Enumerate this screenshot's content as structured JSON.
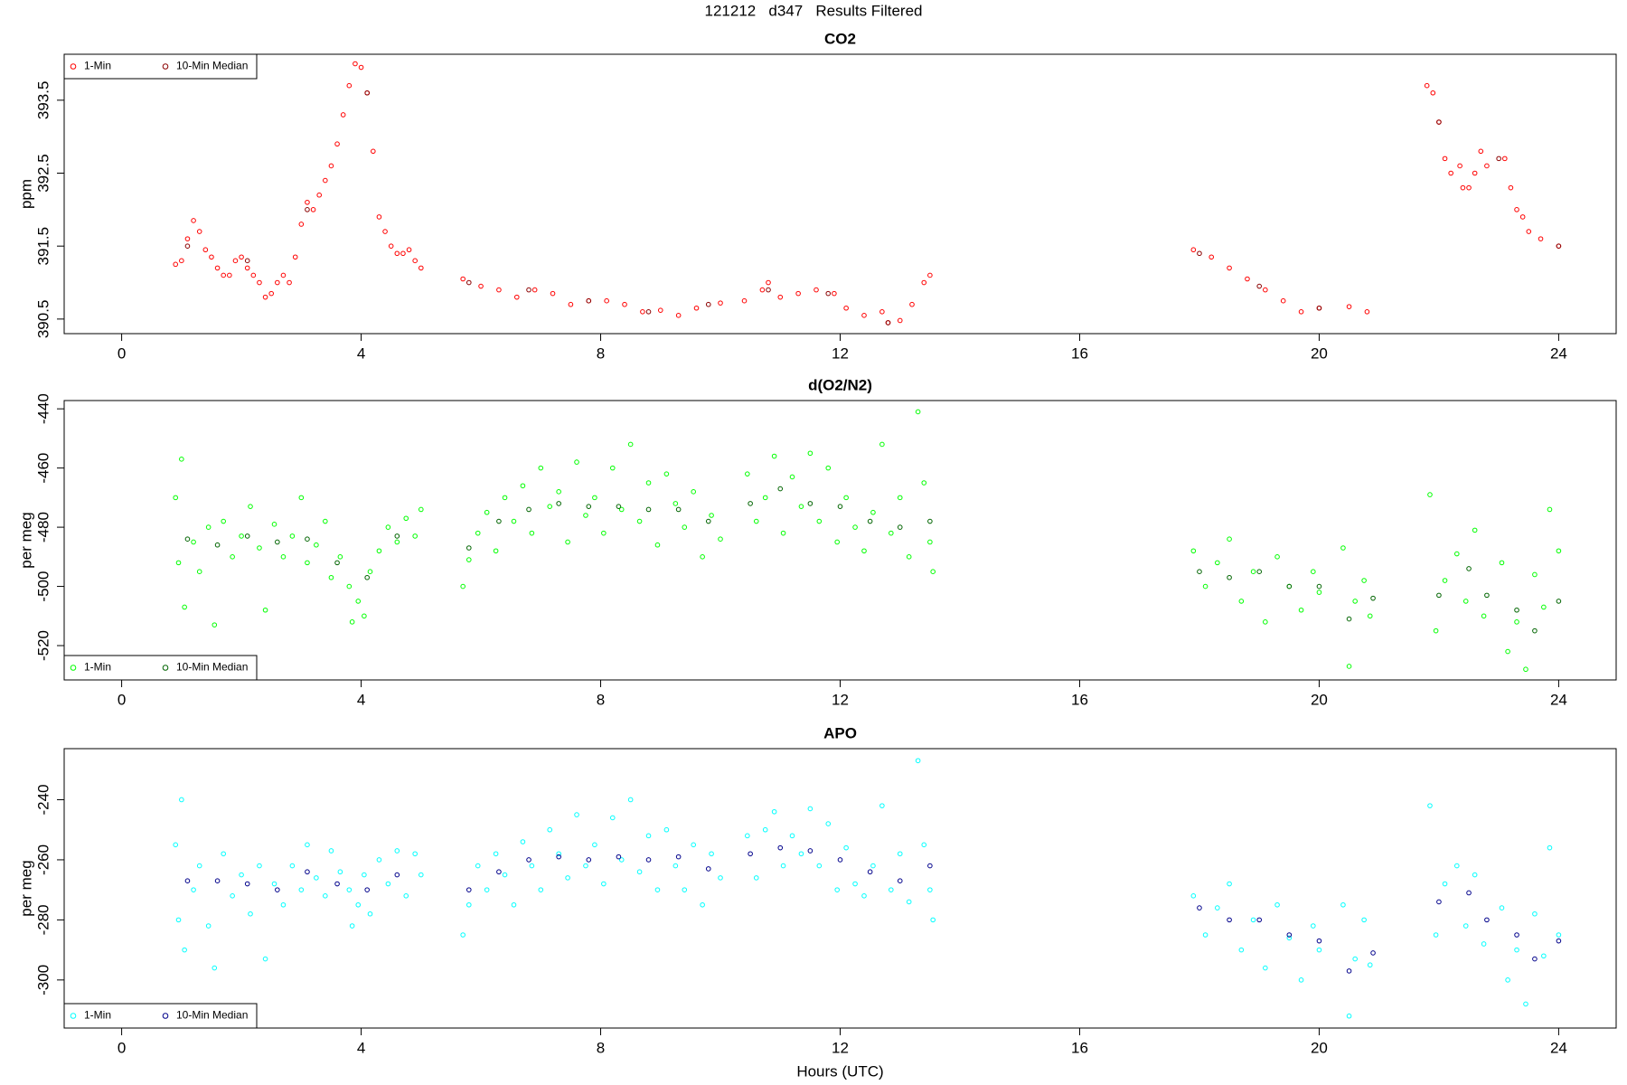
{
  "title": "121212   d347   Results Filtered",
  "chart_data": [
    {
      "type": "scatter",
      "title": "CO2",
      "y_label": "ppm",
      "legend": "top-left",
      "xlim": [
        -0.96,
        24.96
      ],
      "xticks": [
        0,
        4,
        8,
        12,
        16,
        20,
        24
      ],
      "ylim": [
        390.3,
        394.13
      ],
      "yticks": [
        390.5,
        391.5,
        392.5,
        393.5
      ],
      "series": [
        {
          "name": "1-Min",
          "color": "#ff0000",
          "x": [
            0.9,
            1.0,
            1.1,
            1.2,
            1.3,
            1.4,
            1.5,
            1.6,
            1.7,
            1.8,
            1.9,
            2.0,
            2.1,
            2.2,
            2.3,
            2.4,
            2.5,
            2.6,
            2.7,
            2.8,
            2.9,
            3.0,
            3.1,
            3.2,
            3.3,
            3.4,
            3.5,
            3.6,
            3.7,
            3.8,
            3.9,
            4.0,
            4.1,
            4.2,
            4.3,
            4.4,
            4.5,
            4.6,
            4.7,
            4.8,
            4.9,
            5.0,
            5.7,
            6.0,
            6.3,
            6.6,
            6.9,
            7.2,
            7.5,
            7.8,
            8.1,
            8.4,
            8.7,
            9.0,
            9.3,
            9.6,
            10.0,
            10.4,
            10.7,
            10.8,
            11.0,
            11.3,
            11.6,
            11.9,
            12.1,
            12.4,
            12.7,
            12.8,
            13.0,
            13.2,
            13.4,
            13.5,
            17.9,
            18.2,
            18.5,
            18.8,
            19.1,
            19.4,
            19.7,
            20.0,
            20.5,
            20.8,
            21.8,
            21.9,
            22.0,
            22.1,
            22.2,
            22.35,
            22.4,
            22.5,
            22.6,
            22.7,
            22.8,
            23.1,
            23.2,
            23.3,
            23.4,
            23.5,
            23.7,
            24.0
          ],
          "values": [
            391.25,
            391.3,
            391.6,
            391.85,
            391.7,
            391.45,
            391.35,
            391.2,
            391.1,
            391.1,
            391.3,
            391.35,
            391.2,
            391.1,
            391.0,
            390.8,
            390.85,
            391.0,
            391.1,
            391.0,
            391.35,
            391.8,
            392.1,
            392.0,
            392.2,
            392.4,
            392.6,
            392.9,
            393.3,
            393.7,
            394.0,
            393.95,
            393.6,
            392.8,
            391.9,
            391.7,
            391.5,
            391.4,
            391.4,
            391.45,
            391.3,
            391.2,
            391.05,
            390.95,
            390.9,
            390.8,
            390.9,
            390.85,
            390.7,
            390.75,
            390.75,
            390.7,
            390.6,
            390.62,
            390.55,
            390.65,
            390.72,
            390.75,
            390.9,
            391.0,
            390.8,
            390.85,
            390.9,
            390.85,
            390.65,
            390.55,
            390.6,
            390.45,
            390.48,
            390.7,
            391.0,
            391.1,
            391.45,
            391.35,
            391.2,
            391.05,
            390.9,
            390.75,
            390.6,
            390.65,
            390.67,
            390.6,
            393.7,
            393.6,
            393.2,
            392.7,
            392.5,
            392.6,
            392.3,
            392.3,
            392.5,
            392.8,
            392.6,
            392.7,
            392.3,
            392.0,
            391.9,
            391.7,
            391.6,
            391.5
          ]
        },
        {
          "name": "10-Min Median",
          "color": "#8b0000",
          "x": [
            1.1,
            2.1,
            3.1,
            4.1,
            5.8,
            6.8,
            7.8,
            8.8,
            9.8,
            10.8,
            11.8,
            12.8,
            18.0,
            19.0,
            20.0,
            22.0,
            23.0,
            24.0
          ],
          "values": [
            391.5,
            391.3,
            392.0,
            393.6,
            391.0,
            390.9,
            390.75,
            390.6,
            390.7,
            390.9,
            390.85,
            390.45,
            391.4,
            390.95,
            390.65,
            393.2,
            392.7,
            391.5
          ]
        }
      ]
    },
    {
      "type": "scatter",
      "title": "d(O2/N2)",
      "y_label": "per meg",
      "legend": "bottom-left",
      "xlim": [
        -0.96,
        24.96
      ],
      "xticks": [
        0,
        4,
        8,
        12,
        16,
        20,
        24
      ],
      "ylim": [
        -531.6,
        -437.2
      ],
      "yticks": [
        -520,
        -500,
        -480,
        -460,
        -440
      ],
      "series": [
        {
          "name": "1-Min",
          "color": "#00ff00",
          "x": [
            0.9,
            0.95,
            1.0,
            1.05,
            1.2,
            1.3,
            1.45,
            1.55,
            1.7,
            1.85,
            2.0,
            2.15,
            2.3,
            2.4,
            2.55,
            2.7,
            2.85,
            3.0,
            3.1,
            3.25,
            3.4,
            3.5,
            3.65,
            3.8,
            3.85,
            3.95,
            4.05,
            4.15,
            4.3,
            4.45,
            4.6,
            4.75,
            4.9,
            5.0,
            5.7,
            5.8,
            5.95,
            6.1,
            6.25,
            6.4,
            6.55,
            6.7,
            6.85,
            7.0,
            7.15,
            7.3,
            7.45,
            7.6,
            7.75,
            7.9,
            8.05,
            8.2,
            8.35,
            8.5,
            8.65,
            8.8,
            8.95,
            9.1,
            9.25,
            9.4,
            9.55,
            9.7,
            9.85,
            10.0,
            10.45,
            10.6,
            10.75,
            10.9,
            11.05,
            11.2,
            11.35,
            11.5,
            11.65,
            11.8,
            11.95,
            12.1,
            12.25,
            12.4,
            12.55,
            12.7,
            12.85,
            13.0,
            13.15,
            13.3,
            13.4,
            13.5,
            13.55,
            17.9,
            18.1,
            18.3,
            18.5,
            18.7,
            18.9,
            19.1,
            19.3,
            19.5,
            19.7,
            19.9,
            20.0,
            20.4,
            20.5,
            20.6,
            20.75,
            20.85,
            21.85,
            21.95,
            22.1,
            22.3,
            22.45,
            22.6,
            22.75,
            23.05,
            23.15,
            23.3,
            23.45,
            23.6,
            23.75,
            23.85,
            24.0
          ],
          "values": [
            -470,
            -492,
            -457,
            -507,
            -485,
            -495,
            -480,
            -513,
            -478,
            -490,
            -483,
            -473,
            -487,
            -508,
            -479,
            -490,
            -483,
            -470,
            -492,
            -486,
            -478,
            -497,
            -490,
            -500,
            -512,
            -505,
            -510,
            -495,
            -488,
            -480,
            -485,
            -477,
            -483,
            -474,
            -500,
            -491,
            -482,
            -475,
            -488,
            -470,
            -478,
            -466,
            -482,
            -460,
            -473,
            -468,
            -485,
            -458,
            -476,
            -470,
            -482,
            -460,
            -474,
            -452,
            -478,
            -465,
            -486,
            -462,
            -472,
            -480,
            -468,
            -490,
            -476,
            -484,
            -462,
            -478,
            -470,
            -456,
            -482,
            -463,
            -473,
            -455,
            -478,
            -460,
            -485,
            -470,
            -480,
            -488,
            -475,
            -452,
            -482,
            -470,
            -490,
            -441,
            -465,
            -485,
            -495,
            -488,
            -500,
            -492,
            -484,
            -505,
            -495,
            -512,
            -490,
            -500,
            -508,
            -495,
            -502,
            -487,
            -527,
            -505,
            -498,
            -510,
            -469,
            -515,
            -498,
            -489,
            -505,
            -481,
            -510,
            -492,
            -522,
            -512,
            -528,
            -496,
            -507,
            -474,
            -488
          ]
        },
        {
          "name": "10-Min Median",
          "color": "#006400",
          "x": [
            1.1,
            1.6,
            2.1,
            2.6,
            3.1,
            3.6,
            4.1,
            4.6,
            5.8,
            6.3,
            6.8,
            7.3,
            7.8,
            8.3,
            8.8,
            9.3,
            9.8,
            10.5,
            11.0,
            11.5,
            12.0,
            12.5,
            13.0,
            13.5,
            18.0,
            18.5,
            19.0,
            19.5,
            20.0,
            20.5,
            20.9,
            22.0,
            22.5,
            22.8,
            23.3,
            23.6,
            24.0
          ],
          "values": [
            -484,
            -486,
            -483,
            -485,
            -484,
            -492,
            -497,
            -483,
            -487,
            -478,
            -474,
            -472,
            -473,
            -473,
            -474,
            -474,
            -478,
            -472,
            -467,
            -472,
            -473,
            -478,
            -480,
            -478,
            -495,
            -497,
            -495,
            -500,
            -500,
            -511,
            -504,
            -503,
            -494,
            -503,
            -508,
            -515,
            -505
          ]
        }
      ]
    },
    {
      "type": "scatter",
      "title": "APO",
      "y_label": "per meg",
      "x_label": "Hours (UTC)",
      "legend": "bottom-left",
      "xlim": [
        -0.96,
        24.96
      ],
      "xticks": [
        0,
        4,
        8,
        12,
        16,
        20,
        24
      ],
      "ylim": [
        -316,
        -223
      ],
      "yticks": [
        -300,
        -280,
        -260,
        -240
      ],
      "series": [
        {
          "name": "1-Min",
          "color": "#00ffff",
          "x": [
            0.9,
            0.95,
            1.0,
            1.05,
            1.2,
            1.3,
            1.45,
            1.55,
            1.7,
            1.85,
            2.0,
            2.15,
            2.3,
            2.4,
            2.55,
            2.7,
            2.85,
            3.0,
            3.1,
            3.25,
            3.4,
            3.5,
            3.65,
            3.8,
            3.85,
            3.95,
            4.05,
            4.15,
            4.3,
            4.45,
            4.6,
            4.75,
            4.9,
            5.0,
            5.7,
            5.8,
            5.95,
            6.1,
            6.25,
            6.4,
            6.55,
            6.7,
            6.85,
            7.0,
            7.15,
            7.3,
            7.45,
            7.6,
            7.75,
            7.9,
            8.05,
            8.2,
            8.35,
            8.5,
            8.65,
            8.8,
            8.95,
            9.1,
            9.25,
            9.4,
            9.55,
            9.7,
            9.85,
            10.0,
            10.45,
            10.6,
            10.75,
            10.9,
            11.05,
            11.2,
            11.35,
            11.5,
            11.65,
            11.8,
            11.95,
            12.1,
            12.25,
            12.4,
            12.55,
            12.7,
            12.85,
            13.0,
            13.15,
            13.3,
            13.4,
            13.5,
            13.55,
            17.9,
            18.1,
            18.3,
            18.5,
            18.7,
            18.9,
            19.1,
            19.3,
            19.5,
            19.7,
            19.9,
            20.0,
            20.4,
            20.5,
            20.6,
            20.75,
            20.85,
            21.85,
            21.95,
            22.1,
            22.3,
            22.45,
            22.6,
            22.75,
            23.05,
            23.15,
            23.3,
            23.45,
            23.6,
            23.75,
            23.85,
            24.0
          ],
          "values": [
            -255,
            -280,
            -240,
            -290,
            -270,
            -262,
            -282,
            -296,
            -258,
            -272,
            -265,
            -278,
            -262,
            -293,
            -268,
            -275,
            -262,
            -270,
            -255,
            -266,
            -272,
            -257,
            -264,
            -270,
            -282,
            -275,
            -265,
            -278,
            -260,
            -268,
            -257,
            -272,
            -258,
            -265,
            -285,
            -275,
            -262,
            -270,
            -258,
            -265,
            -275,
            -254,
            -262,
            -270,
            -250,
            -258,
            -266,
            -245,
            -262,
            -255,
            -268,
            -246,
            -260,
            -240,
            -264,
            -252,
            -270,
            -250,
            -262,
            -270,
            -255,
            -275,
            -258,
            -266,
            -252,
            -266,
            -250,
            -244,
            -262,
            -252,
            -258,
            -243,
            -262,
            -248,
            -270,
            -256,
            -268,
            -272,
            -262,
            -242,
            -270,
            -258,
            -274,
            -227,
            -255,
            -270,
            -280,
            -272,
            -285,
            -276,
            -268,
            -290,
            -280,
            -296,
            -275,
            -286,
            -300,
            -282,
            -290,
            -275,
            -312,
            -293,
            -280,
            -295,
            -242,
            -285,
            -268,
            -262,
            -282,
            -265,
            -288,
            -276,
            -300,
            -290,
            -308,
            -278,
            -292,
            -256,
            -285
          ]
        },
        {
          "name": "10-Min Median",
          "color": "#00008b",
          "x": [
            1.1,
            1.6,
            2.1,
            2.6,
            3.1,
            3.6,
            4.1,
            4.6,
            5.8,
            6.3,
            6.8,
            7.3,
            7.8,
            8.3,
            8.8,
            9.3,
            9.8,
            10.5,
            11.0,
            11.5,
            12.0,
            12.5,
            13.0,
            13.5,
            18.0,
            18.5,
            19.0,
            19.5,
            20.0,
            20.5,
            20.9,
            22.0,
            22.5,
            22.8,
            23.3,
            23.6,
            24.0
          ],
          "values": [
            -267,
            -267,
            -268,
            -270,
            -264,
            -268,
            -270,
            -265,
            -270,
            -264,
            -260,
            -259,
            -260,
            -259,
            -260,
            -259,
            -263,
            -258,
            -256,
            -257,
            -260,
            -264,
            -267,
            -262,
            -276,
            -280,
            -280,
            -285,
            -287,
            -297,
            -291,
            -274,
            -271,
            -280,
            -285,
            -293,
            -287
          ]
        }
      ]
    }
  ]
}
